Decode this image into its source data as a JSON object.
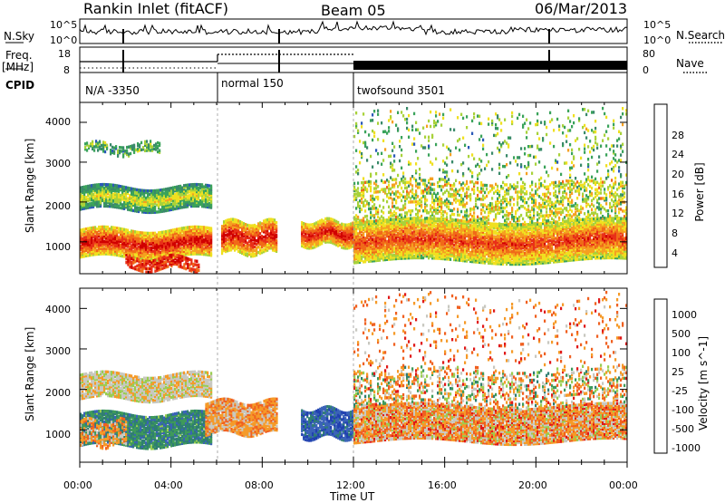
{
  "header": {
    "station": "Rankin Inlet (fitACF)",
    "beam": "Beam 05",
    "date": "06/Mar/2013"
  },
  "strip_labels": {
    "nsky": "N.Sky",
    "nsearch": "N.Search",
    "freq": "Freq.",
    "mhz": "[MHz]",
    "nave": "Nave",
    "cpid": "CPID"
  },
  "noise_axis": {
    "left_top": "10^5",
    "left_bottom": "10^0",
    "right_top": "10^5",
    "right_bottom": "10^0"
  },
  "freq_axis": {
    "left_ticks": [
      "18",
      "8"
    ],
    "right_ticks": [
      "80",
      "0"
    ]
  },
  "cpid_segments": [
    {
      "label": "N/A -3350"
    },
    {
      "label": "normal 150"
    },
    {
      "label": "twofsound 3501"
    }
  ],
  "x_axis": {
    "label": "Time UT",
    "ticks": [
      "00:00",
      "04:00",
      "08:00",
      "12:00",
      "16:00",
      "20:00",
      "00:00"
    ]
  },
  "colors": {
    "power": [
      "#1a24c8",
      "#2a58b8",
      "#3a8a6a",
      "#3aa35a",
      "#a8d23a",
      "#f0e020",
      "#f5a020",
      "#f06a18",
      "#e83018",
      "#d00000"
    ],
    "velocity": [
      "#e01818",
      "#f06020",
      "#f59a28",
      "#c8c8c0",
      "#9acd50",
      "#3f9a5a",
      "#2f7e72",
      "#3a62b8",
      "#2040b0"
    ]
  },
  "chart_data": [
    {
      "type": "heatmap",
      "title": "Power",
      "ylabel": "Slant Range [km]",
      "xlabel": "Time UT",
      "yticks": [
        "1000",
        "2000",
        "3000",
        "4000"
      ],
      "ylim": [
        200,
        4500
      ],
      "colorbar": {
        "label": "Power [dB]",
        "ticks": [
          "4",
          "8",
          "12",
          "16",
          "20",
          "24",
          "28"
        ]
      }
    },
    {
      "type": "heatmap",
      "title": "Velocity",
      "ylabel": "Slant Range [km]",
      "xlabel": "Time UT",
      "yticks": [
        "1000",
        "2000",
        "3000",
        "4000"
      ],
      "ylim": [
        200,
        4500
      ],
      "colorbar": {
        "label": "Velocity [m s^-1]",
        "ticks": [
          "1000",
          "500",
          "100",
          "25",
          "-25",
          "-100",
          "-500",
          "-1000"
        ]
      }
    }
  ]
}
